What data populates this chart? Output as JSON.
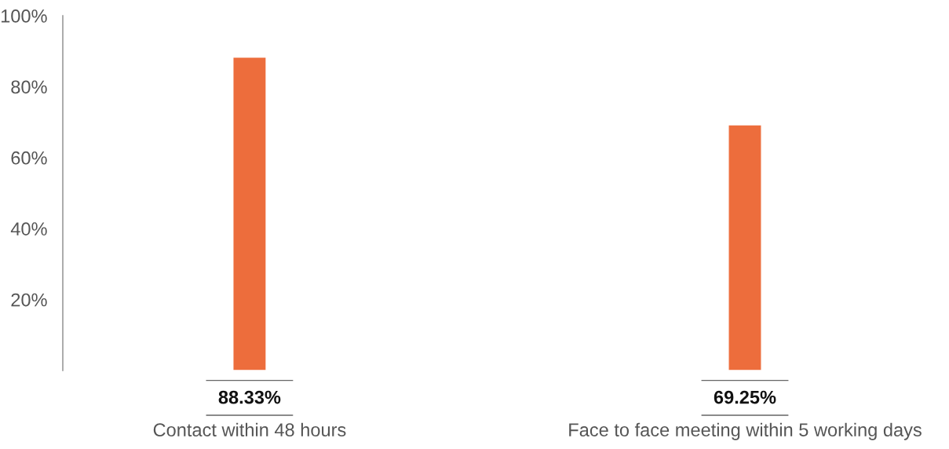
{
  "chart_data": {
    "type": "bar",
    "categories": [
      "Contact within 48 hours",
      "Face to face meeting within 5 working days"
    ],
    "values": [
      88.33,
      69.25
    ],
    "color": "#ed6d3c",
    "value_labels": [
      "88.33%",
      "69.25%"
    ],
    "ylim": [
      0,
      100
    ],
    "yticks": [
      {
        "value": 20,
        "label": "20%"
      },
      {
        "value": 40,
        "label": "40%"
      },
      {
        "value": 60,
        "label": "60%"
      },
      {
        "value": 80,
        "label": "80%"
      },
      {
        "value": 100,
        "label": "100%"
      }
    ],
    "grid": false,
    "legend": false
  }
}
